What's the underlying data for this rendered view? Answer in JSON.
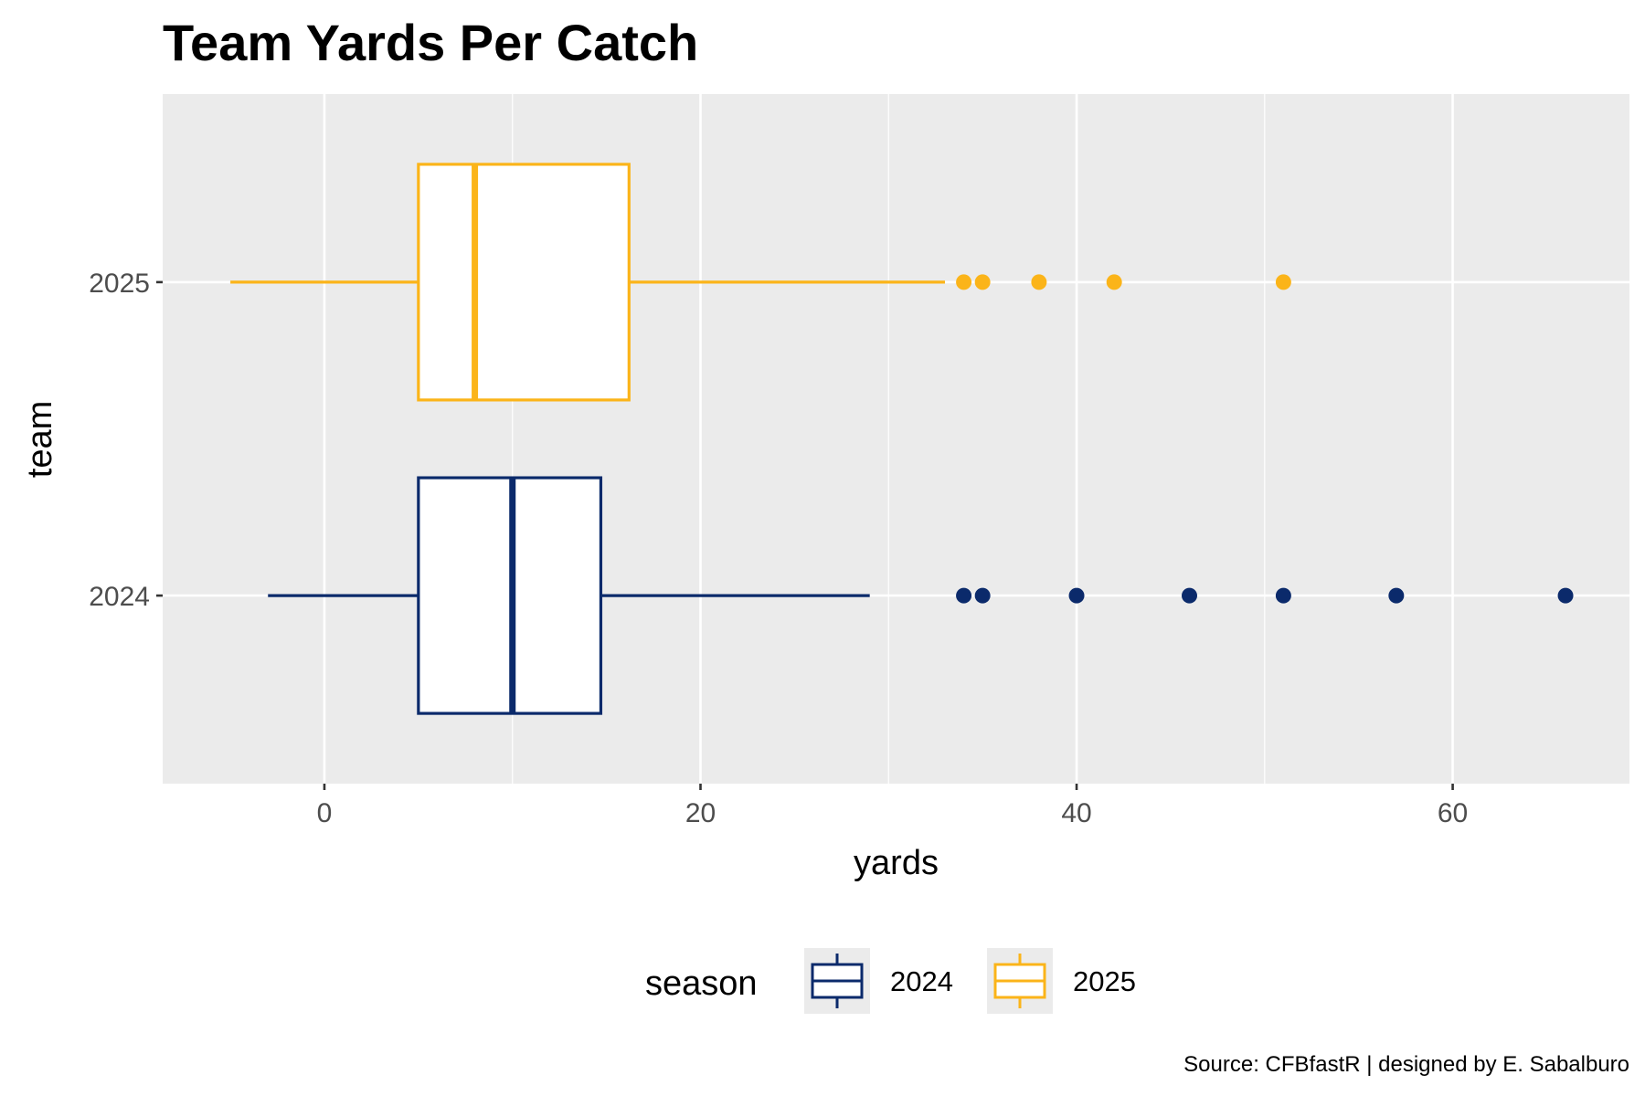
{
  "chart_data": {
    "type": "boxplot",
    "orientation": "horizontal",
    "title": "Team Yards Per Catch",
    "xlabel": "yards",
    "ylabel": "team",
    "xlim": [
      -8.6,
      69.4
    ],
    "x_ticks": [
      0,
      20,
      40,
      60
    ],
    "x_tick_labels": [
      "0",
      "20",
      "40",
      "60"
    ],
    "grid": true,
    "legend": {
      "title": "season",
      "position": "bottom"
    },
    "caption": "Source: CFBfastR | designed by E. Sabalburo",
    "categories": [
      "2024",
      "2025"
    ],
    "series": [
      {
        "name": "2024",
        "category": "2024",
        "color": "#0b2a6b",
        "whisker_low": -3,
        "q1": 5,
        "median": 10,
        "q3": 14.7,
        "whisker_high": 29,
        "outliers": [
          34,
          35,
          40,
          46,
          51,
          57,
          66
        ]
      },
      {
        "name": "2025",
        "category": "2025",
        "color": "#fbb419",
        "whisker_low": -5,
        "q1": 5,
        "median": 8,
        "q3": 16.2,
        "whisker_high": 33,
        "outliers": [
          34,
          35,
          38,
          42,
          51
        ]
      }
    ]
  }
}
